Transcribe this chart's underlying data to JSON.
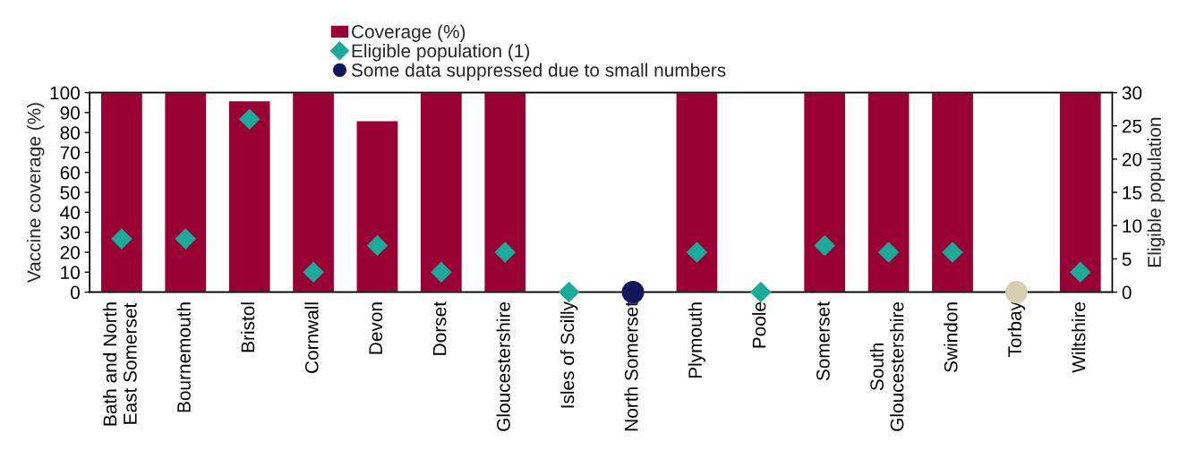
{
  "chart_data": {
    "type": "bar",
    "categories": [
      "Bath and North\nEast Somerset",
      "Bournemouth",
      "Bristol",
      "Cornwall",
      "Devon",
      "Dorset",
      "Gloucestershire",
      "Isles of Scilly",
      "North Somerset",
      "Plymouth",
      "Poole",
      "Somerset",
      "South\nGloucestershire",
      "Swindon",
      "Torbay",
      "Wiltshire"
    ],
    "series": [
      {
        "name": "Coverage (%)",
        "color": "#990033",
        "values": [
          100,
          100,
          96,
          100,
          86,
          100,
          100,
          null,
          null,
          100,
          null,
          100,
          100,
          100,
          null,
          100
        ]
      },
      {
        "name": "Eligible population (1)",
        "type": "scatter",
        "axis": "y2",
        "marker": "diamond",
        "color": "#1aab99",
        "values": [
          8,
          8,
          26,
          3,
          7,
          3,
          6,
          0,
          null,
          6,
          0,
          7,
          6,
          6,
          null,
          3
        ]
      },
      {
        "name": "Some data suppressed due to small numbers",
        "type": "scatter",
        "axis": "y2",
        "marker": "circle",
        "color": "#14165a",
        "values": [
          null,
          null,
          null,
          null,
          null,
          null,
          null,
          null,
          0,
          null,
          null,
          null,
          null,
          null,
          null,
          null
        ]
      },
      {
        "type": "scatter",
        "axis": "y2",
        "marker": "circle",
        "color": "#d6cfb4",
        "values": [
          null,
          null,
          null,
          null,
          null,
          null,
          null,
          null,
          null,
          null,
          null,
          null,
          null,
          null,
          0,
          null
        ]
      }
    ],
    "ylabel": "Vaccine coverage (%)",
    "y2label": "Eligible population",
    "ylim": [
      0,
      100
    ],
    "yticks": [
      0,
      10,
      20,
      30,
      40,
      50,
      60,
      70,
      80,
      90,
      100
    ],
    "y2lim": [
      0,
      30
    ],
    "y2ticks": [
      0,
      5,
      10,
      15,
      20,
      25,
      30
    ],
    "legend": "top",
    "grid": false
  }
}
